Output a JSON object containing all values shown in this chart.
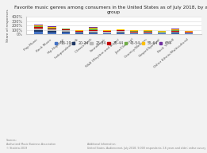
{
  "title": "Favorite music genres among consumers in the United States as of July 2018, by age\ngroup",
  "ylabel": "Share of responses",
  "categories": [
    "Pop Music",
    "Rock Music",
    "Hip-Hop/RAP",
    "Independent/Folk",
    "Classic Rock",
    "Soundtrack",
    "R&B (Rhythm and Blues)",
    "Jazz/Classical",
    "Country/Western",
    "Gospel/Spiritual",
    "Rock 'n' Roll",
    "Other Ethnic/Multicultural"
  ],
  "age_groups": [
    "16-19",
    "20-24",
    "25-34",
    "35-44",
    "45-54",
    "55-64",
    "65+"
  ],
  "colors": [
    "#4472C4",
    "#1F3864",
    "#B8B8B8",
    "#C00000",
    "#70AD47",
    "#FFC000",
    "#7030A0"
  ],
  "data": [
    [
      47,
      40,
      28,
      18,
      18,
      14,
      22,
      10,
      12,
      9,
      16,
      10
    ],
    [
      38,
      30,
      30,
      14,
      20,
      12,
      20,
      12,
      10,
      8,
      14,
      10
    ],
    [
      40,
      35,
      30,
      18,
      28,
      22,
      24,
      14,
      14,
      10,
      20,
      12
    ],
    [
      35,
      30,
      22,
      18,
      30,
      16,
      20,
      16,
      16,
      12,
      22,
      14
    ],
    [
      25,
      22,
      12,
      14,
      34,
      12,
      14,
      18,
      20,
      14,
      24,
      14
    ],
    [
      18,
      16,
      8,
      10,
      24,
      8,
      10,
      14,
      15,
      12,
      18,
      12
    ],
    [
      12,
      12,
      6,
      8,
      18,
      6,
      8,
      12,
      12,
      8,
      14,
      8
    ]
  ],
  "ylim": [
    0,
    400
  ],
  "yticks": [
    0,
    100,
    200,
    300,
    400
  ],
  "ytick_labels": [
    "0%",
    "100%",
    "200%",
    "300%",
    "400%"
  ],
  "source_text": "Sources:\nAuthorized Music Business Association\n© Statista 2019",
  "add_info_text": "Additional Information:\nUnited States; Audiencenet, July 2018; 9,000 respondents; 16 years and older; online survey",
  "legend_labels": [
    "16-19",
    "20-24",
    "25-34",
    "35-44",
    "45-54",
    "55-64",
    "65+"
  ],
  "bg_color": "#f2f2f2",
  "plot_bg_color": "#ffffff"
}
